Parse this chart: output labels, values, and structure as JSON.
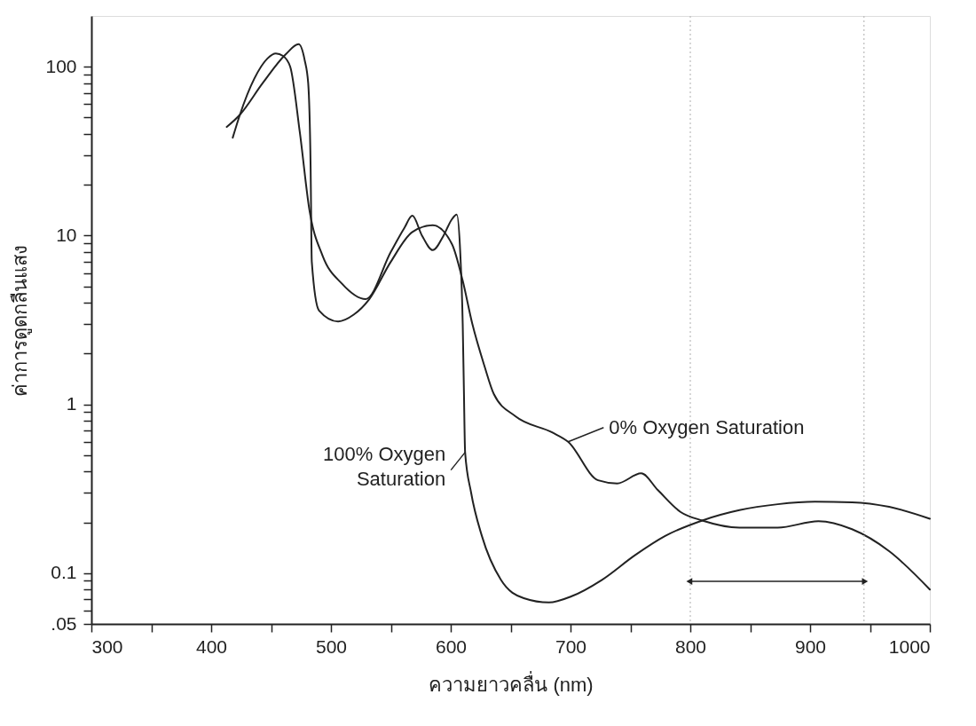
{
  "chart_data": {
    "type": "line",
    "xlabel": "ความยาวคลื่น (nm)",
    "ylabel": "ค่าการดูดกลืนแสง",
    "series": [
      {
        "name": "100% Oxygen\nSaturation",
        "color": "#222222",
        "x": [
          418,
          424,
          436,
          447,
          454,
          460,
          466,
          474,
          482,
          493,
          509,
          529,
          550,
          561,
          568,
          576,
          585,
          594,
          601,
          605,
          608,
          610,
          611,
          612,
          617,
          626,
          642,
          661,
          682,
          701,
          726,
          754,
          779,
          810,
          841,
          873,
          904,
          935,
          966,
          1000
        ],
        "values": [
          38,
          52,
          85,
          112,
          120,
          116,
          100,
          41,
          14.2,
          7.6,
          5.2,
          4.2,
          8,
          11,
          13.1,
          10,
          8.2,
          10,
          12.5,
          13.3,
          7.8,
          3,
          1.2,
          0.52,
          0.3,
          0.166,
          0.091,
          0.071,
          0.067,
          0.073,
          0.091,
          0.128,
          0.166,
          0.205,
          0.236,
          0.256,
          0.265,
          0.263,
          0.247,
          0.21
        ]
      },
      {
        "name": "0% Oxygen Saturation",
        "color": "#222222",
        "x": [
          413,
          424,
          443,
          462,
          473,
          478,
          481,
          483,
          484,
          490,
          506,
          519,
          532,
          550,
          568,
          585,
          601,
          610,
          618,
          628,
          636,
          654,
          685,
          698,
          723,
          739,
          759,
          773,
          792,
          810,
          841,
          873,
          907,
          935,
          966,
          1000
        ],
        "values": [
          44,
          52,
          80,
          118,
          136,
          110,
          80,
          26,
          7,
          3.6,
          3.1,
          3.4,
          4.2,
          7,
          10.5,
          11.5,
          8.9,
          5.4,
          3.0,
          1.7,
          1.15,
          0.85,
          0.68,
          0.6,
          0.355,
          0.34,
          0.39,
          0.31,
          0.23,
          0.205,
          0.186,
          0.186,
          0.203,
          0.182,
          0.135,
          0.08
        ]
      }
    ],
    "log": "y",
    "xlim": [
      300,
      1000
    ],
    "xticks": [
      300,
      {
        "value": 350,
        "label": null
      },
      400,
      {
        "value": 450,
        "label": null
      },
      500,
      {
        "value": 550,
        "label": null
      },
      600,
      {
        "value": 650,
        "label": null
      },
      700,
      {
        "value": 750,
        "label": null
      },
      800,
      {
        "value": 850,
        "label": null
      },
      900,
      {
        "value": 950,
        "label": null
      },
      1000
    ],
    "ylim": [
      0.05,
      200
    ],
    "yticks": [
      {
        "value": 0.05,
        "label": ".05"
      },
      {
        "value": 0.06,
        "label": null
      },
      {
        "value": 0.07,
        "label": null
      },
      {
        "value": 0.08,
        "label": null
      },
      {
        "value": 0.09,
        "label": null
      },
      {
        "value": 0.1,
        "label": "0.1"
      },
      {
        "value": 0.2,
        "label": null
      },
      {
        "value": 0.3,
        "label": null
      },
      {
        "value": 0.4,
        "label": null
      },
      {
        "value": 0.5,
        "label": null
      },
      {
        "value": 0.6,
        "label": null
      },
      {
        "value": 0.7,
        "label": null
      },
      {
        "value": 0.8,
        "label": null
      },
      {
        "value": 0.9,
        "label": null
      },
      1,
      {
        "value": 2,
        "label": null
      },
      {
        "value": 3,
        "label": null
      },
      {
        "value": 4,
        "label": null
      },
      {
        "value": 5,
        "label": null
      },
      {
        "value": 6,
        "label": null
      },
      {
        "value": 7,
        "label": null
      },
      {
        "value": 8,
        "label": null
      },
      {
        "value": 9,
        "label": null
      },
      10,
      {
        "value": 20,
        "label": null
      },
      {
        "value": 30,
        "label": null
      },
      {
        "value": 40,
        "label": null
      },
      {
        "value": 50,
        "label": null
      },
      {
        "value": 60,
        "label": null
      },
      {
        "value": 70,
        "label": null
      },
      {
        "value": 80,
        "label": null
      },
      {
        "value": 90,
        "label": null
      },
      100
    ],
    "ref_lines": [
      {
        "axis": "x",
        "value": 800,
        "color": "#bbbbbb",
        "line_style": "dotted"
      },
      {
        "axis": "x",
        "value": 945,
        "color": "#bbbbbb",
        "line_style": "dotted"
      }
    ],
    "grid": false,
    "marker": "none",
    "line_style": "solid"
  }
}
